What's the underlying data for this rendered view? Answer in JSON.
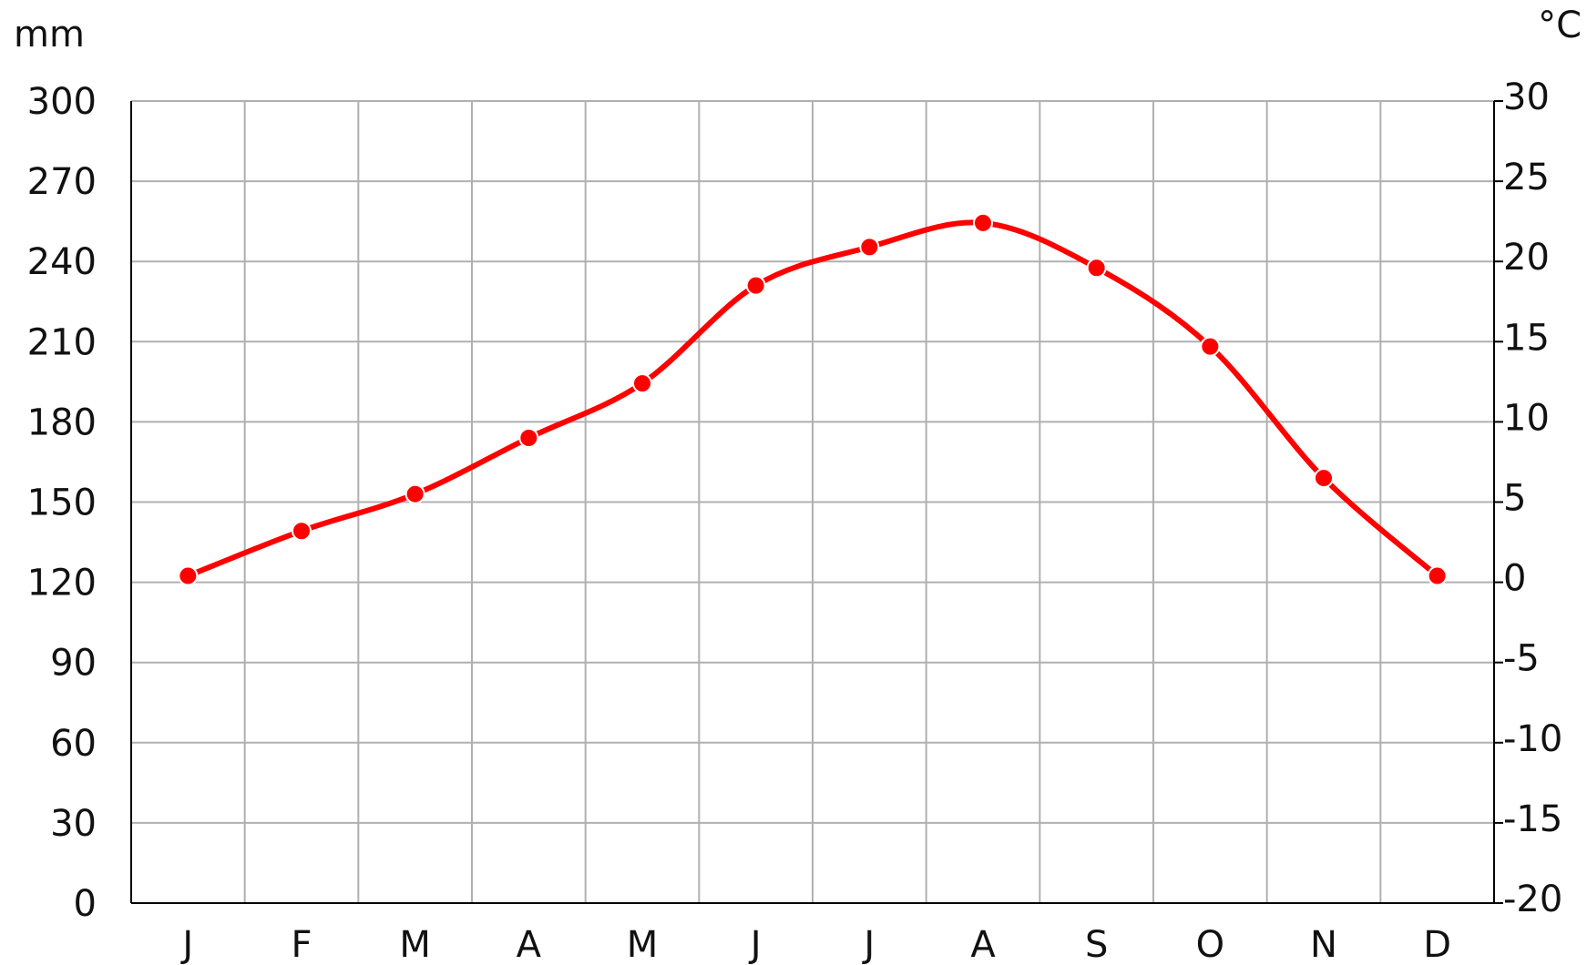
{
  "chart_data": {
    "type": "line",
    "y_label": "mm",
    "y2_label": "°C",
    "categories": [
      "J",
      "F",
      "M",
      "A",
      "M",
      "J",
      "J",
      "A",
      "S",
      "O",
      "N",
      "D"
    ],
    "series": [
      {
        "color": "#ff0000",
        "axis": "y2",
        "values": [
          0.4,
          3.2,
          5.5,
          9,
          12.4,
          18.5,
          20.9,
          22.4,
          19.6,
          14.7,
          6.5,
          0.4
        ]
      }
    ],
    "ylim": [
      0,
      300
    ],
    "yticks": [
      0,
      30,
      60,
      90,
      120,
      150,
      180,
      210,
      240,
      270,
      300
    ],
    "y2lim": [
      -20,
      30
    ],
    "y2ticks": [
      -20,
      -15,
      -10,
      -5,
      0,
      5,
      10,
      15,
      20,
      25,
      30
    ],
    "grid": true
  }
}
